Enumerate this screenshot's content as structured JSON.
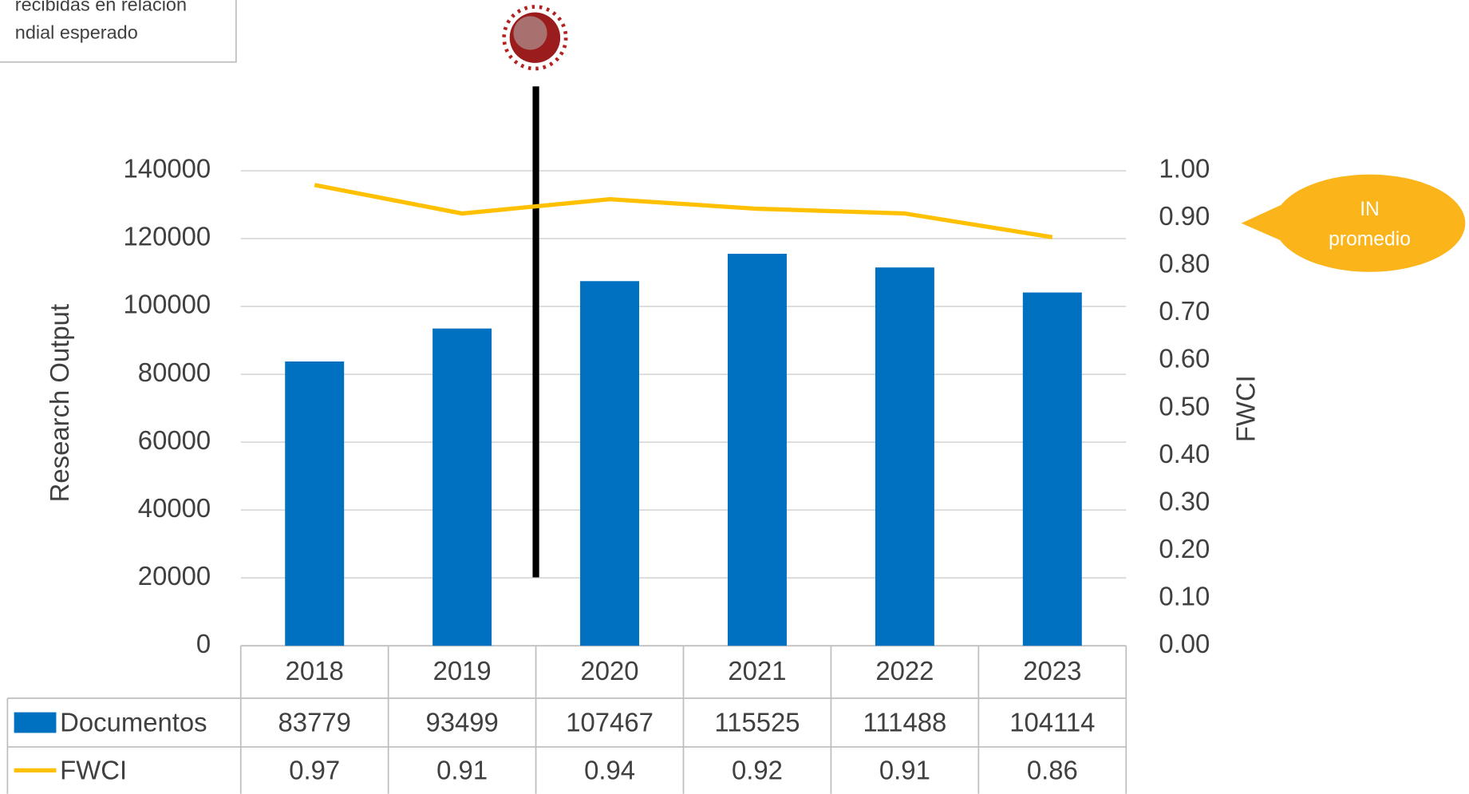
{
  "chart_data": {
    "type": "bar",
    "note_lines": [
      "recibidas en relación",
      "ndial esperado"
    ],
    "ylabel": "Research Output",
    "y2label": "FWCI",
    "categories": [
      "2018",
      "2019",
      "2020",
      "2021",
      "2022",
      "2023"
    ],
    "series": [
      {
        "name": "Documentos",
        "type": "bar",
        "color": "#0070c0",
        "values": [
          83779,
          93499,
          107467,
          115525,
          111488,
          104114
        ]
      },
      {
        "name": "FWCI",
        "type": "line",
        "axis": "y2",
        "color": "#ffc000",
        "values": [
          0.97,
          0.91,
          0.94,
          0.92,
          0.91,
          0.86
        ]
      }
    ],
    "ylim": [
      0,
      140000
    ],
    "yticks": [
      0,
      20000,
      40000,
      60000,
      80000,
      100000,
      120000,
      140000
    ],
    "y2lim": [
      0,
      1
    ],
    "y2ticks": [
      {
        "value": 0,
        "label": "0.00"
      },
      {
        "value": 0.1,
        "label": "0.10"
      },
      {
        "value": 0.2,
        "label": "0.20"
      },
      {
        "value": 0.3,
        "label": "0.30"
      },
      {
        "value": 0.4,
        "label": "0.40"
      },
      {
        "value": 0.5,
        "label": "0.50"
      },
      {
        "value": 0.6,
        "label": "0.60"
      },
      {
        "value": 0.7,
        "label": "0.70"
      },
      {
        "value": 0.8,
        "label": "0.80"
      },
      {
        "value": 0.9,
        "label": "0.90"
      },
      {
        "value": 1,
        "label": "1.00"
      }
    ],
    "grid": true,
    "callout_lines": [
      "IN",
      "promedio"
    ],
    "callout_color": "#fbb41a"
  }
}
